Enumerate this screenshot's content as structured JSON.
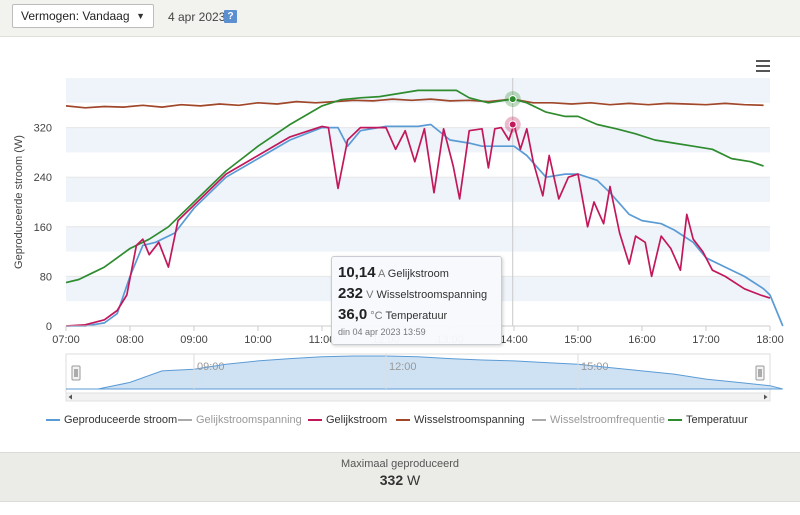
{
  "header": {
    "select_label": "Vermogen: Vandaag",
    "date": "4 apr 2023",
    "help_label": "?"
  },
  "tooltip": {
    "rows": [
      {
        "value": "10,14",
        "unit": "A",
        "label": "Gelijkstroom"
      },
      {
        "value": "232",
        "unit": "V",
        "label": "Wisselstroomspanning"
      },
      {
        "value": "36,0",
        "unit": "°C",
        "label": "Temperatuur"
      }
    ],
    "time": "din 04 apr 2023 13:59"
  },
  "footer": {
    "label": "Maximaal geproduceerd",
    "value": "332",
    "unit": "W"
  },
  "colors": {
    "geproduceerd": "#5b9bd5",
    "gelijkstroom": "#c2185b",
    "wisselspanning": "#a0472a",
    "temperatuur": "#2e8b2e",
    "inactive": "#aaaaaa",
    "band": "#eef4fa"
  },
  "chart_data": {
    "type": "line",
    "ylabel": "Geproduceerde stroom (W)",
    "yticks": [
      0,
      80,
      160,
      240,
      320
    ],
    "ylim": [
      0,
      400
    ],
    "xlim": [
      7.0,
      18.0
    ],
    "xticks": [
      "07:00",
      "08:00",
      "09:00",
      "10:00",
      "11:00",
      "12:00",
      "13:00",
      "14:00",
      "15:00",
      "16:00",
      "17:00",
      "18:00"
    ],
    "navigator_ticks": [
      {
        "x": 9,
        "label": "09:00"
      },
      {
        "x": 12,
        "label": "12:00"
      },
      {
        "x": 15,
        "label": "15:00"
      }
    ],
    "crosshair_x": 13.98,
    "legend": [
      {
        "name": "Geproduceerde stroom",
        "active": true,
        "color": "#5b9bd5"
      },
      {
        "name": "Gelijkstroomspanning",
        "active": false,
        "color": "#aaaaaa"
      },
      {
        "name": "Gelijkstroom",
        "active": true,
        "color": "#c2185b"
      },
      {
        "name": "Wisselstroomspanning",
        "active": true,
        "color": "#a0472a"
      },
      {
        "name": "Wisselstroomfrequentie",
        "active": false,
        "color": "#aaaaaa"
      },
      {
        "name": "Temperatuur",
        "active": true,
        "color": "#2e8b2e"
      }
    ],
    "series": [
      {
        "name": "Geproduceerde stroom",
        "color": "#5b9bd5",
        "points": [
          [
            7.0,
            0
          ],
          [
            7.3,
            0
          ],
          [
            7.6,
            5
          ],
          [
            7.8,
            20
          ],
          [
            8.0,
            80
          ],
          [
            8.2,
            130
          ],
          [
            8.4,
            135
          ],
          [
            8.7,
            150
          ],
          [
            9.0,
            190
          ],
          [
            9.5,
            240
          ],
          [
            10.0,
            270
          ],
          [
            10.5,
            300
          ],
          [
            11.0,
            320
          ],
          [
            11.25,
            320
          ],
          [
            11.4,
            290
          ],
          [
            11.6,
            315
          ],
          [
            12.0,
            322
          ],
          [
            12.5,
            322
          ],
          [
            12.7,
            325
          ],
          [
            13.0,
            300
          ],
          [
            13.3,
            295
          ],
          [
            13.5,
            290
          ],
          [
            13.8,
            290
          ],
          [
            14.0,
            290
          ],
          [
            14.2,
            275
          ],
          [
            14.5,
            240
          ],
          [
            14.8,
            245
          ],
          [
            15.0,
            245
          ],
          [
            15.3,
            235
          ],
          [
            15.5,
            215
          ],
          [
            15.8,
            180
          ],
          [
            16.0,
            170
          ],
          [
            16.3,
            165
          ],
          [
            16.5,
            155
          ],
          [
            16.8,
            135
          ],
          [
            17.0,
            110
          ],
          [
            17.3,
            95
          ],
          [
            17.6,
            80
          ],
          [
            17.9,
            60
          ],
          [
            18.0,
            50
          ],
          [
            18.2,
            0
          ]
        ]
      },
      {
        "name": "Gelijkstroom",
        "color": "#c2185b",
        "points": [
          [
            7.0,
            0
          ],
          [
            7.3,
            2
          ],
          [
            7.6,
            10
          ],
          [
            7.8,
            25
          ],
          [
            7.95,
            50
          ],
          [
            8.1,
            130
          ],
          [
            8.2,
            140
          ],
          [
            8.3,
            115
          ],
          [
            8.45,
            135
          ],
          [
            8.6,
            95
          ],
          [
            8.75,
            170
          ],
          [
            9.0,
            195
          ],
          [
            9.5,
            245
          ],
          [
            10.0,
            275
          ],
          [
            10.5,
            305
          ],
          [
            11.0,
            322
          ],
          [
            11.1,
            320
          ],
          [
            11.25,
            222
          ],
          [
            11.4,
            300
          ],
          [
            11.6,
            320
          ],
          [
            11.8,
            320
          ],
          [
            12.0,
            320
          ],
          [
            12.15,
            285
          ],
          [
            12.3,
            315
          ],
          [
            12.45,
            265
          ],
          [
            12.6,
            318
          ],
          [
            12.75,
            215
          ],
          [
            12.9,
            318
          ],
          [
            13.05,
            258
          ],
          [
            13.15,
            205
          ],
          [
            13.3,
            315
          ],
          [
            13.5,
            318
          ],
          [
            13.6,
            255
          ],
          [
            13.7,
            318
          ],
          [
            13.8,
            320
          ],
          [
            13.92,
            300
          ],
          [
            14.0,
            325
          ],
          [
            14.1,
            285
          ],
          [
            14.2,
            318
          ],
          [
            14.3,
            265
          ],
          [
            14.45,
            210
          ],
          [
            14.55,
            275
          ],
          [
            14.7,
            205
          ],
          [
            14.85,
            240
          ],
          [
            15.0,
            245
          ],
          [
            15.15,
            160
          ],
          [
            15.25,
            200
          ],
          [
            15.4,
            165
          ],
          [
            15.5,
            225
          ],
          [
            15.65,
            150
          ],
          [
            15.8,
            100
          ],
          [
            15.9,
            145
          ],
          [
            16.05,
            135
          ],
          [
            16.15,
            80
          ],
          [
            16.3,
            145
          ],
          [
            16.45,
            125
          ],
          [
            16.6,
            90
          ],
          [
            16.7,
            180
          ],
          [
            16.8,
            140
          ],
          [
            16.95,
            120
          ],
          [
            17.1,
            90
          ],
          [
            17.3,
            80
          ],
          [
            17.6,
            60
          ],
          [
            17.85,
            50
          ],
          [
            18.0,
            45
          ]
        ]
      },
      {
        "name": "Wisselstroomspanning",
        "color": "#a0472a",
        "points": [
          [
            7.0,
            355
          ],
          [
            7.3,
            352
          ],
          [
            7.6,
            354
          ],
          [
            7.9,
            353
          ],
          [
            8.2,
            356
          ],
          [
            8.5,
            353
          ],
          [
            8.8,
            357
          ],
          [
            9.1,
            355
          ],
          [
            9.4,
            358
          ],
          [
            9.7,
            356
          ],
          [
            10.0,
            360
          ],
          [
            10.3,
            358
          ],
          [
            10.6,
            362
          ],
          [
            10.9,
            360
          ],
          [
            11.2,
            362
          ],
          [
            11.5,
            364
          ],
          [
            11.8,
            363
          ],
          [
            12.1,
            366
          ],
          [
            12.4,
            364
          ],
          [
            12.7,
            366
          ],
          [
            13.0,
            363
          ],
          [
            13.3,
            364
          ],
          [
            13.6,
            362
          ],
          [
            13.98,
            366
          ],
          [
            14.3,
            360
          ],
          [
            14.6,
            360
          ],
          [
            14.9,
            358
          ],
          [
            15.2,
            360
          ],
          [
            15.5,
            357
          ],
          [
            15.8,
            359
          ],
          [
            16.1,
            357
          ],
          [
            16.4,
            359
          ],
          [
            16.7,
            358
          ],
          [
            17.0,
            357
          ],
          [
            17.3,
            359
          ],
          [
            17.6,
            357
          ],
          [
            17.9,
            356
          ]
        ]
      },
      {
        "name": "Temperatuur",
        "color": "#2e8b2e",
        "points": [
          [
            7.0,
            70
          ],
          [
            7.2,
            75
          ],
          [
            7.4,
            85
          ],
          [
            7.6,
            95
          ],
          [
            7.8,
            110
          ],
          [
            8.0,
            125
          ],
          [
            8.3,
            140
          ],
          [
            8.6,
            160
          ],
          [
            9.0,
            200
          ],
          [
            9.5,
            250
          ],
          [
            10.0,
            290
          ],
          [
            10.5,
            325
          ],
          [
            11.0,
            355
          ],
          [
            11.3,
            365
          ],
          [
            11.6,
            368
          ],
          [
            11.9,
            370
          ],
          [
            12.2,
            375
          ],
          [
            12.5,
            380
          ],
          [
            12.8,
            380
          ],
          [
            13.1,
            380
          ],
          [
            13.3,
            368
          ],
          [
            13.6,
            360
          ],
          [
            13.98,
            366
          ],
          [
            14.2,
            360
          ],
          [
            14.5,
            345
          ],
          [
            14.8,
            338
          ],
          [
            15.0,
            338
          ],
          [
            15.3,
            325
          ],
          [
            15.6,
            318
          ],
          [
            15.9,
            310
          ],
          [
            16.2,
            300
          ],
          [
            16.5,
            295
          ],
          [
            16.8,
            290
          ],
          [
            17.1,
            285
          ],
          [
            17.4,
            270
          ],
          [
            17.7,
            265
          ],
          [
            17.9,
            258
          ]
        ]
      }
    ],
    "navigator_series": {
      "name": "Geproduceerde stroom",
      "points": [
        [
          7.0,
          0
        ],
        [
          7.5,
          0
        ],
        [
          8.0,
          20
        ],
        [
          8.5,
          55
        ],
        [
          9.0,
          60
        ],
        [
          9.5,
          75
        ],
        [
          10.0,
          85
        ],
        [
          10.5,
          92
        ],
        [
          11.0,
          98
        ],
        [
          11.5,
          100
        ],
        [
          12.0,
          100
        ],
        [
          12.5,
          98
        ],
        [
          13.0,
          92
        ],
        [
          13.5,
          88
        ],
        [
          14.0,
          85
        ],
        [
          14.5,
          80
        ],
        [
          15.0,
          75
        ],
        [
          15.5,
          65
        ],
        [
          16.0,
          55
        ],
        [
          16.5,
          45
        ],
        [
          17.0,
          30
        ],
        [
          17.5,
          20
        ],
        [
          18.0,
          10
        ],
        [
          18.2,
          0
        ]
      ]
    }
  }
}
